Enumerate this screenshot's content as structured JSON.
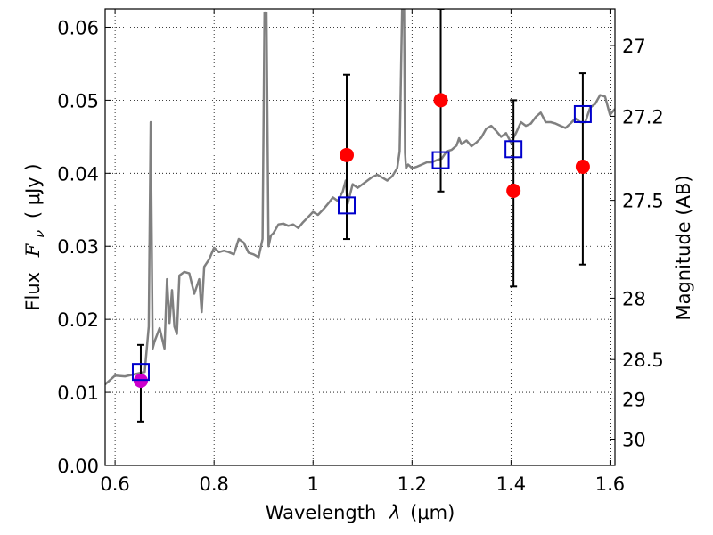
{
  "chart_data": {
    "type": "scatter",
    "xlabel_text": "Wavelength",
    "xlabel_symbol": "λ",
    "xlabel_unit": "(μm)",
    "ylabel_text": "Flux",
    "ylabel_symbol": "F",
    "ylabel_subscript": "ν",
    "ylabel_unit": "( μJy )",
    "y2label": "Magnitude (AB)",
    "xlim": [
      0.58,
      1.61
    ],
    "ylim": [
      0.0,
      0.0625
    ],
    "grid": true,
    "x_ticks": [
      0.6,
      0.8,
      1.0,
      1.2,
      1.4,
      1.6
    ],
    "x_tick_labels": [
      "0.6",
      "0.8",
      "1",
      "1.2",
      "1.4",
      "1.6"
    ],
    "y_ticks": [
      0.0,
      0.01,
      0.02,
      0.03,
      0.04,
      0.05,
      0.06
    ],
    "y_tick_labels": [
      "0.00",
      "0.01",
      "0.02",
      "0.03",
      "0.04",
      "0.05",
      "0.06"
    ],
    "y2_ticks": [
      {
        "label": "27",
        "flux": 0.0575
      },
      {
        "label": "27.2",
        "flux": 0.0478
      },
      {
        "label": "27.5",
        "flux": 0.0363
      },
      {
        "label": "28",
        "flux": 0.0229
      },
      {
        "label": "28.5",
        "flux": 0.0145
      },
      {
        "label": "29",
        "flux": 0.0091
      },
      {
        "label": "30",
        "flux": 0.0036
      }
    ],
    "series": [
      {
        "kind": "line",
        "color": "#808080",
        "x": [
          0.58,
          0.6,
          0.62,
          0.64,
          0.66,
          0.668,
          0.672,
          0.676,
          0.68,
          0.69,
          0.7,
          0.705,
          0.71,
          0.715,
          0.72,
          0.725,
          0.73,
          0.74,
          0.75,
          0.76,
          0.77,
          0.775,
          0.78,
          0.79,
          0.8,
          0.81,
          0.82,
          0.83,
          0.84,
          0.85,
          0.86,
          0.87,
          0.88,
          0.89,
          0.898,
          0.902,
          0.906,
          0.91,
          0.915,
          0.92,
          0.93,
          0.94,
          0.95,
          0.96,
          0.97,
          0.98,
          0.99,
          1.0,
          1.01,
          1.02,
          1.03,
          1.04,
          1.05,
          1.06,
          1.066,
          1.07,
          1.08,
          1.09,
          1.1,
          1.11,
          1.12,
          1.13,
          1.14,
          1.15,
          1.16,
          1.17,
          1.175,
          1.18,
          1.184,
          1.186,
          1.188,
          1.192,
          1.2,
          1.21,
          1.22,
          1.23,
          1.24,
          1.25,
          1.26,
          1.27,
          1.28,
          1.29,
          1.295,
          1.3,
          1.31,
          1.32,
          1.33,
          1.34,
          1.35,
          1.36,
          1.37,
          1.38,
          1.39,
          1.4,
          1.41,
          1.42,
          1.43,
          1.44,
          1.45,
          1.46,
          1.47,
          1.48,
          1.49,
          1.5,
          1.51,
          1.52,
          1.53,
          1.54,
          1.55,
          1.56,
          1.57,
          1.58,
          1.59,
          1.6,
          1.61
        ],
        "y": [
          0.0111,
          0.0123,
          0.0122,
          0.0125,
          0.0128,
          0.019,
          0.047,
          0.016,
          0.017,
          0.0188,
          0.016,
          0.0255,
          0.0195,
          0.024,
          0.019,
          0.018,
          0.026,
          0.0265,
          0.0263,
          0.0235,
          0.0255,
          0.021,
          0.0272,
          0.0282,
          0.0298,
          0.0292,
          0.0294,
          0.0292,
          0.0289,
          0.031,
          0.0305,
          0.0291,
          0.0289,
          0.0285,
          0.031,
          0.062,
          0.062,
          0.03,
          0.0315,
          0.0318,
          0.033,
          0.0331,
          0.0328,
          0.033,
          0.0325,
          0.0333,
          0.034,
          0.0347,
          0.0343,
          0.035,
          0.0358,
          0.0367,
          0.0362,
          0.0375,
          0.039,
          0.0358,
          0.0385,
          0.038,
          0.0385,
          0.039,
          0.0395,
          0.0398,
          0.0394,
          0.039,
          0.0396,
          0.0407,
          0.043,
          0.0625,
          0.0625,
          0.0428,
          0.0407,
          0.0412,
          0.0407,
          0.0409,
          0.0412,
          0.0415,
          0.0415,
          0.0418,
          0.042,
          0.043,
          0.0432,
          0.0438,
          0.0448,
          0.044,
          0.0445,
          0.0437,
          0.0442,
          0.0449,
          0.0461,
          0.0465,
          0.0458,
          0.045,
          0.0455,
          0.0442,
          0.0455,
          0.047,
          0.0465,
          0.0468,
          0.0477,
          0.0483,
          0.047,
          0.047,
          0.0468,
          0.0465,
          0.0462,
          0.0468,
          0.0475,
          0.047,
          0.047,
          0.049,
          0.0495,
          0.0507,
          0.0505,
          0.048,
          0.0488
        ]
      },
      {
        "kind": "markers-circle",
        "color": "#ff0000",
        "points": [
          {
            "x": 1.068,
            "y": 0.0425
          },
          {
            "x": 1.258,
            "y": 0.05
          },
          {
            "x": 1.405,
            "y": 0.0376
          },
          {
            "x": 1.545,
            "y": 0.0409
          }
        ]
      },
      {
        "kind": "markers-circle",
        "color": "#cc00cc",
        "points": [
          {
            "x": 0.652,
            "y": 0.0116
          }
        ]
      },
      {
        "kind": "markers-square",
        "color": "#0000cc",
        "points": [
          {
            "x": 0.652,
            "y": 0.0128
          },
          {
            "x": 1.068,
            "y": 0.0356
          },
          {
            "x": 1.258,
            "y": 0.0418
          },
          {
            "x": 1.405,
            "y": 0.0433
          },
          {
            "x": 1.545,
            "y": 0.0481
          }
        ]
      },
      {
        "kind": "errorbars",
        "color": "#000000",
        "bars": [
          {
            "x": 0.652,
            "lo": 0.006,
            "hi": 0.0165
          },
          {
            "x": 1.068,
            "lo": 0.031,
            "hi": 0.0535
          },
          {
            "x": 1.258,
            "lo": 0.0375,
            "hi": 0.0625
          },
          {
            "x": 1.405,
            "lo": 0.0245,
            "hi": 0.05
          },
          {
            "x": 1.545,
            "lo": 0.0275,
            "hi": 0.0537
          }
        ]
      }
    ]
  }
}
